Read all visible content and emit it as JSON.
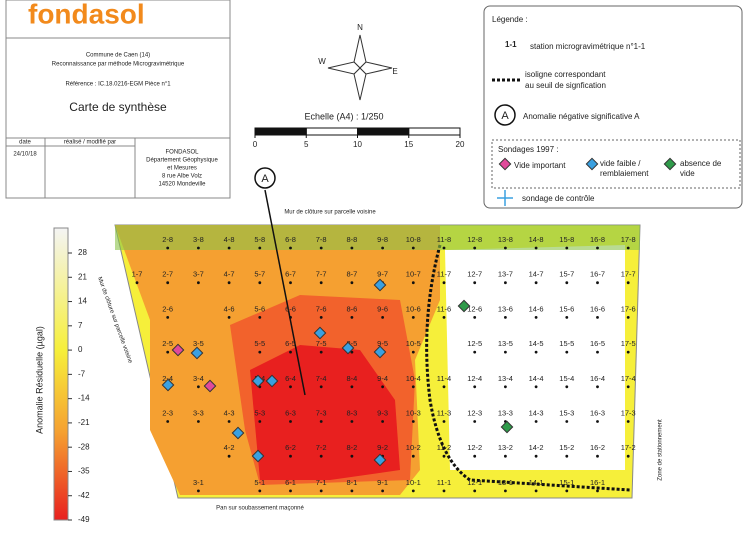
{
  "title_block": {
    "logo": "fondasol",
    "commune": "Commune de Caen (14)",
    "mission": "Reconnaissance par méthode Microgravimétrique",
    "reference": "Référence : IC.18.0216-EGM Pièce n°1",
    "title": "Carte de synthèse",
    "col_date": "date",
    "col_modif": "réalisé / modifié par",
    "date": "24/10/18",
    "company": [
      "FONDASOL",
      "Département Géophysique",
      "et Mesures",
      "8 rue Albe Volz",
      "14520 Mondeville"
    ]
  },
  "legend": {
    "title": "Légende :",
    "station_symbol": "1-1",
    "station_text": "station microgravimétrique n°1-1",
    "isoline_text": [
      "isoligne correspondant",
      "au seuil de signfication"
    ],
    "anomaly_symbol": "A",
    "anomaly_text": "Anomalie négative significative A",
    "sondages_title": "Sondages 1997 :",
    "vide": "Vide important",
    "vide_faible": [
      "vide faible /",
      "remblaiement"
    ],
    "absence": [
      "absence de",
      "vide"
    ],
    "controle": "sondage de contrôle"
  },
  "north": {
    "n": "N",
    "w": "W",
    "e": "E"
  },
  "scale": {
    "label": "Echelle (A4) : 1/250",
    "ticks": [
      0,
      5,
      10,
      15,
      20
    ]
  },
  "colorbar": {
    "label": "Anomalie Résiduelle (µgal)",
    "ticks": [
      28,
      21,
      14,
      7,
      0,
      -7,
      -14,
      -21,
      -28,
      -35,
      -42,
      -49
    ]
  },
  "map": {
    "anomaly": "A",
    "wall_top": "Mur de clôture sur parcelle voisine",
    "wall_left": "Mur de clôture sur parcelle voisine",
    "wall_bottom": "Pan sur soubassement maçonné",
    "zone": "Zone de stationnement",
    "stations": [
      [
        "2-8",
        "3-8",
        "4-8",
        "5-8",
        "6-8",
        "7-8",
        "8-8",
        "9-8",
        "10-8",
        "11-8",
        "12-8",
        "13-8",
        "14-8",
        "15-8",
        "16-8",
        "17-8"
      ],
      [
        "1-7",
        "2-7",
        "3-7",
        "4-7",
        "5-7",
        "6-7",
        "7-7",
        "8-7",
        "9-7",
        "10-7",
        "11-7",
        "12-7",
        "13-7",
        "14-7",
        "15-7",
        "16-7",
        "17-7"
      ],
      [
        "2-6",
        "4-6",
        "5-6",
        "6-6",
        "7-6",
        "8-6",
        "9-6",
        "10-6",
        "11-6",
        "12-6",
        "13-6",
        "14-6",
        "15-6",
        "16-6",
        "17-6"
      ],
      [
        "2-5",
        "3-5",
        "5-5",
        "6-5",
        "7-5",
        "8-5",
        "9-5",
        "10-5",
        "12-5",
        "13-5",
        "14-5",
        "15-5",
        "16-5",
        "17-5"
      ],
      [
        "2-4",
        "3-4",
        "5-4",
        "6-4",
        "7-4",
        "8-4",
        "9-4",
        "10-4",
        "11-4",
        "12-4",
        "13-4",
        "14-4",
        "15-4",
        "16-4",
        "17-4"
      ],
      [
        "2-3",
        "3-3",
        "4-3",
        "5-3",
        "6-3",
        "7-3",
        "8-3",
        "9-3",
        "10-3",
        "11-3",
        "12-3",
        "13-3",
        "14-3",
        "15-3",
        "16-3",
        "17-3"
      ],
      [
        "4-2",
        "6-2",
        "7-2",
        "8-2",
        "9-2",
        "10-2",
        "11-2",
        "12-2",
        "13-2",
        "14-2",
        "15-2",
        "16-2",
        "17-2"
      ],
      [
        "3-1",
        "5-1",
        "6-1",
        "7-1",
        "8-1",
        "9-1",
        "10-1",
        "11-1",
        "12-1",
        "13-1",
        "14-1",
        "15-1",
        "16-1"
      ]
    ]
  }
}
